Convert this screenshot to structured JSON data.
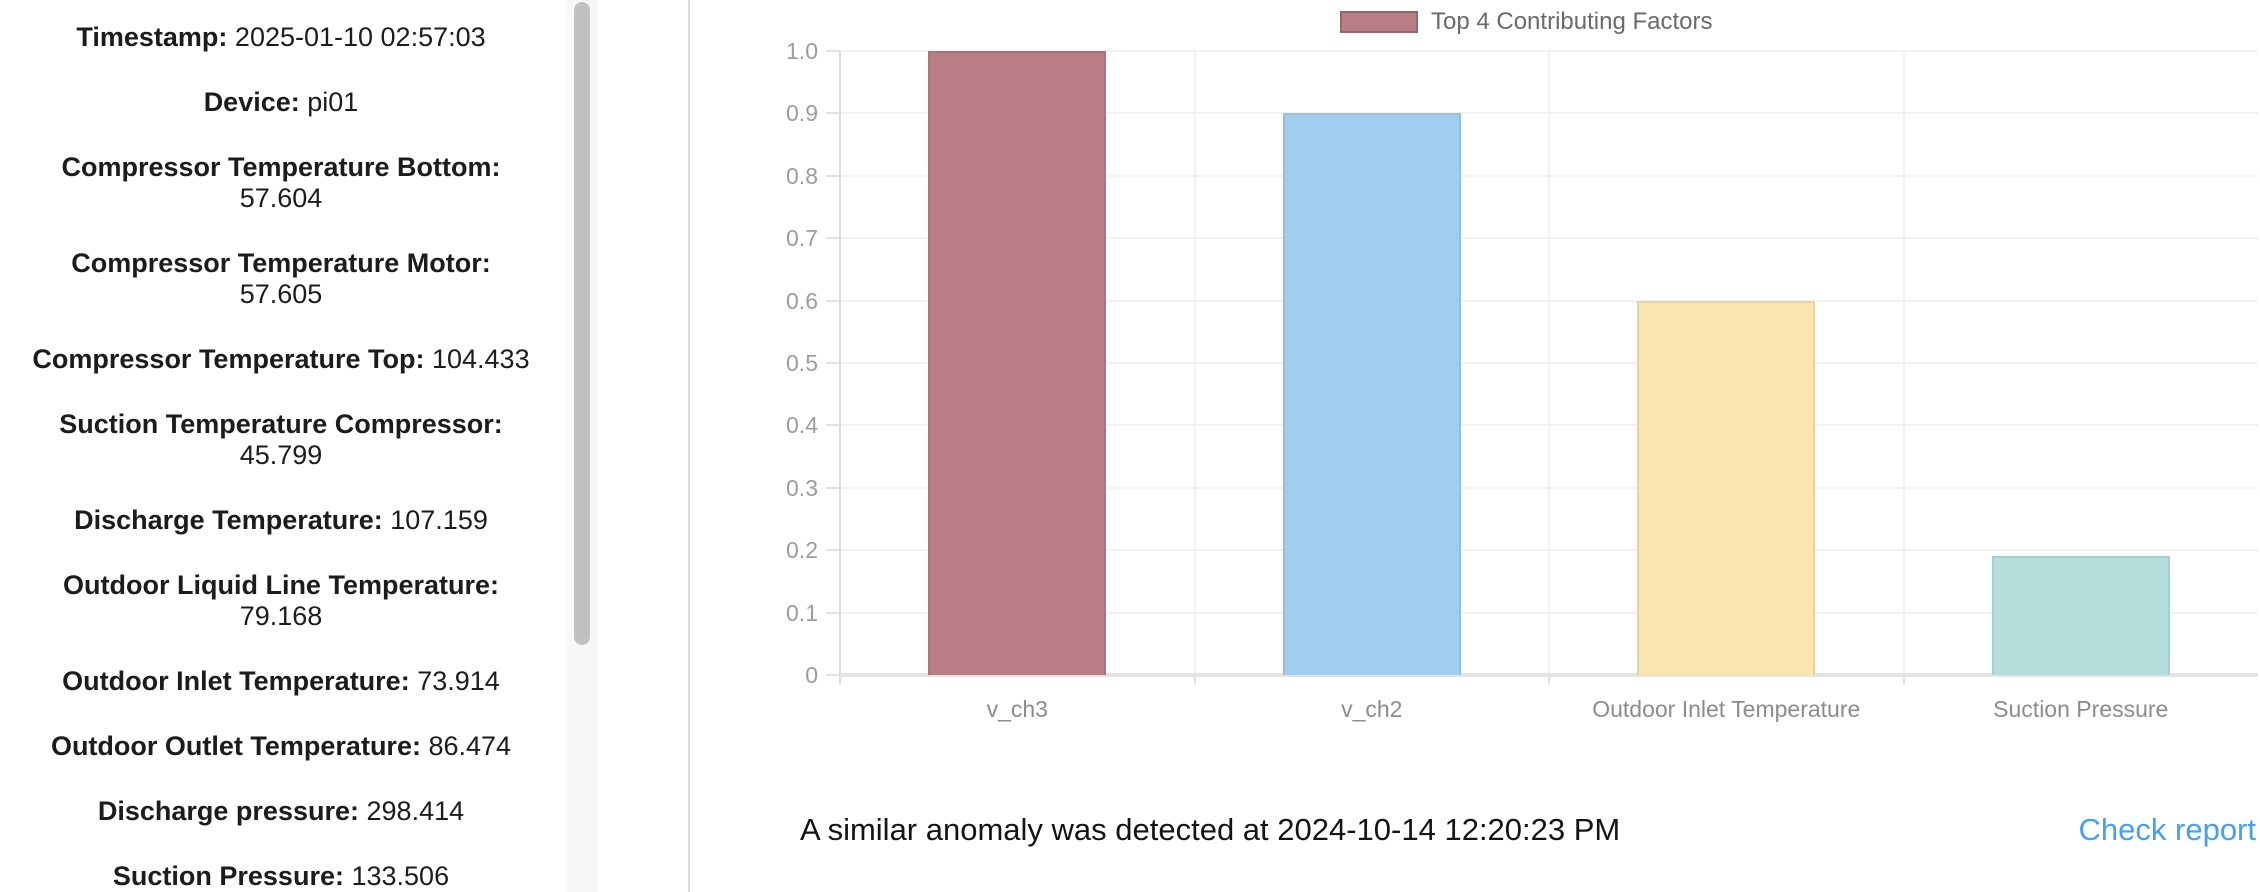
{
  "device_panel": {
    "readings": [
      {
        "label": "Timestamp:",
        "value": "2025-01-10 02:57:03",
        "wrap": false
      },
      {
        "label": "Device:",
        "value": "pi01",
        "wrap": false
      },
      {
        "label": "Compressor Temperature Bottom:",
        "value": "57.604",
        "wrap": true
      },
      {
        "label": "Compressor Temperature Motor:",
        "value": "57.605",
        "wrap": true
      },
      {
        "label": "Compressor Temperature Top:",
        "value": "104.433",
        "wrap": false
      },
      {
        "label": "Suction Temperature Compressor:",
        "value": "45.799",
        "wrap": true
      },
      {
        "label": "Discharge Temperature:",
        "value": "107.159",
        "wrap": false
      },
      {
        "label": "Outdoor Liquid Line Temperature:",
        "value": "79.168",
        "wrap": true
      },
      {
        "label": "Outdoor Inlet Temperature:",
        "value": "73.914",
        "wrap": false
      },
      {
        "label": "Outdoor Outlet Temperature:",
        "value": "86.474",
        "wrap": false
      },
      {
        "label": "Discharge pressure:",
        "value": "298.414",
        "wrap": false
      },
      {
        "label": "Suction Pressure:",
        "value": "133.506",
        "wrap": false
      }
    ]
  },
  "chart_data": {
    "type": "bar",
    "title": "",
    "legend": {
      "label": "Top 4 Contributing Factors",
      "swatch_color": "#b97e85",
      "position": "top"
    },
    "categories": [
      "v_ch3",
      "v_ch2",
      "Outdoor Inlet Temperature",
      "Suction Pressure"
    ],
    "values": [
      1.0,
      0.9,
      0.6,
      0.19
    ],
    "bar_colors": [
      "#b97e85",
      "#a2cdee",
      "#f9e5ad",
      "#b3dedb"
    ],
    "xlabel": "",
    "ylabel": "",
    "ylim": [
      0,
      1.0
    ],
    "ytick_labels": [
      "0",
      "0.1",
      "0.2",
      "0.3",
      "0.4",
      "0.5",
      "0.6",
      "0.7",
      "0.8",
      "0.9",
      "1.0"
    ],
    "ytick_values": [
      0,
      0.1,
      0.2,
      0.3,
      0.4,
      0.5,
      0.6,
      0.7,
      0.8,
      0.9,
      1.0
    ],
    "grid": true,
    "legend_position": "top"
  },
  "footer": {
    "message": "A similar anomaly was detected at 2024-10-14 12:20:23 PM",
    "link_label": "Check report",
    "link_color": "#42a0f5"
  }
}
